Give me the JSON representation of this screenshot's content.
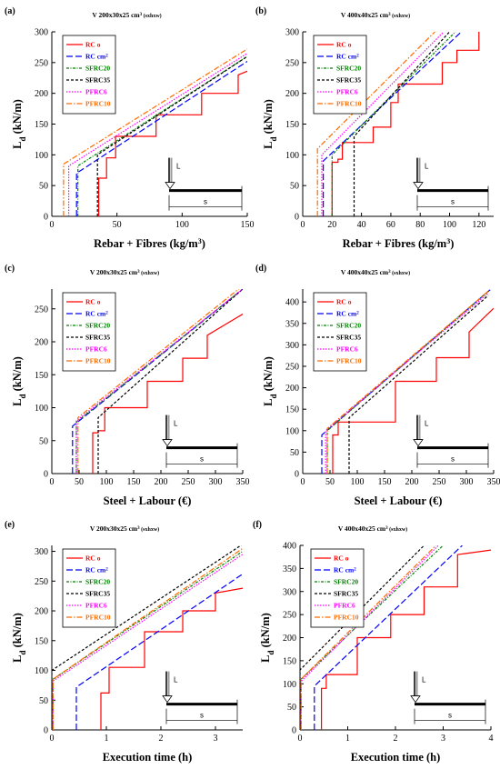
{
  "colors": {
    "RC o": "#ff0000",
    "RC cm2": "#0000ff",
    "SFRC20": "#008000",
    "SFRC35": "#000000",
    "PFRC6": "#ff00ff",
    "PFRC10": "#ff6a00"
  },
  "legend": [
    {
      "key": "RC o",
      "label": "RC o",
      "dash": ""
    },
    {
      "key": "RC cm2",
      "label": "RC cm",
      "sup": "2",
      "dash": "7,3"
    },
    {
      "key": "SFRC20",
      "label": "SFRC20",
      "dash": "3,1.5,1,1.5"
    },
    {
      "key": "SFRC35",
      "label": "SFRC35",
      "dash": "3,2"
    },
    {
      "key": "PFRC6",
      "label": "PFRC6",
      "dash": "1.5,1.5"
    },
    {
      "key": "PFRC10",
      "label": "PFRC10",
      "dash": "6,2,1.5,2"
    }
  ],
  "inset": {
    "load_label": "L",
    "span_label": "s"
  },
  "chart_data": [
    {
      "panel": "(a)",
      "title": "V 200x30x25 cm",
      "title_sup": "3",
      "title_sub": "(sxhxw)",
      "type": "line",
      "xlabel": "Rebar + Fibres  (kg/m",
      "xlabel_sup": "3",
      "xlabel_end": ")",
      "ylabel": "L",
      "ylabel_sub": "d",
      "ylabel_end": " (kN/m)",
      "xlim": [
        0,
        150
      ],
      "ylim": [
        0,
        300
      ],
      "xticks": [
        0,
        50,
        100,
        150
      ],
      "xtick_labels": [
        "0",
        "50",
        "100",
        "150"
      ],
      "yticks": [
        0,
        50,
        100,
        150,
        200,
        250,
        300
      ],
      "ytick_labels": [
        "0",
        "50",
        "100",
        "150",
        "200",
        "250",
        "300"
      ],
      "series": [
        {
          "name": "RC o",
          "x": [
            36,
            36,
            42,
            42,
            49,
            49,
            80,
            80,
            115,
            115,
            143,
            143,
            150
          ],
          "y": [
            0,
            62,
            62,
            95,
            95,
            130,
            130,
            165,
            165,
            200,
            200,
            230,
            236
          ]
        },
        {
          "name": "RC cm2",
          "x": [
            19,
            19,
            150
          ],
          "y": [
            0,
            70,
            252
          ]
        },
        {
          "name": "SFRC20",
          "x": [
            20,
            20,
            150
          ],
          "y": [
            0,
            82,
            260
          ]
        },
        {
          "name": "SFRC35",
          "x": [
            35,
            35,
            150
          ],
          "y": [
            0,
            100,
            260
          ]
        },
        {
          "name": "PFRC6",
          "x": [
            13,
            13,
            150
          ],
          "y": [
            0,
            82,
            265
          ]
        },
        {
          "name": "PFRC10",
          "x": [
            9,
            9,
            150
          ],
          "y": [
            0,
            85,
            272
          ]
        }
      ]
    },
    {
      "panel": "(b)",
      "title": "V 400x40x25 cm",
      "title_sup": "3",
      "title_sub": "(sxhxw)",
      "type": "line",
      "xlabel": "Rebar + Fibres  (kg/m",
      "xlabel_sup": "3",
      "xlabel_end": ")",
      "ylabel": "L",
      "ylabel_sub": "d",
      "ylabel_end": " (kN/m)",
      "xlim": [
        0,
        130
      ],
      "ylim": [
        0,
        300
      ],
      "xticks": [
        0,
        20,
        40,
        60,
        80,
        100,
        120
      ],
      "xtick_labels": [
        "0",
        "20",
        "40",
        "60",
        "80",
        "100",
        "120"
      ],
      "yticks": [
        0,
        50,
        100,
        150,
        200,
        250,
        300
      ],
      "ytick_labels": [
        "0",
        "50",
        "100",
        "150",
        "200",
        "250",
        "300"
      ],
      "series": [
        {
          "name": "RC o",
          "x": [
            20,
            20,
            24,
            24,
            27,
            27,
            48,
            48,
            60,
            60,
            65,
            65,
            95,
            95,
            105,
            105,
            120,
            120
          ],
          "y": [
            0,
            88,
            88,
            93,
            93,
            120,
            120,
            145,
            145,
            185,
            185,
            215,
            215,
            250,
            250,
            270,
            270,
            300
          ]
        },
        {
          "name": "RC cm2",
          "x": [
            14,
            14,
            108
          ],
          "y": [
            0,
            90,
            300
          ]
        },
        {
          "name": "SFRC20",
          "x": [
            20,
            20,
            104
          ],
          "y": [
            0,
            100,
            300
          ]
        },
        {
          "name": "SFRC35",
          "x": [
            35,
            35,
            100
          ],
          "y": [
            0,
            130,
            300
          ]
        },
        {
          "name": "PFRC6",
          "x": [
            13,
            13,
            96
          ],
          "y": [
            0,
            100,
            300
          ]
        },
        {
          "name": "PFRC10",
          "x": [
            10,
            10,
            90
          ],
          "y": [
            0,
            110,
            300
          ]
        }
      ]
    },
    {
      "panel": "(c)",
      "title": "V 200x30x25 cm",
      "title_sup": "3",
      "title_sub": "(sxhxw)",
      "type": "line",
      "xlabel": "Steel + Labour (€)",
      "xlabel_sup": "",
      "xlabel_end": "",
      "ylabel": "L",
      "ylabel_sub": "d",
      "ylabel_end": " (kN/m)",
      "xlim": [
        0,
        350
      ],
      "ylim": [
        0,
        280
      ],
      "xticks": [
        0,
        50,
        100,
        150,
        200,
        250,
        300,
        350
      ],
      "xtick_labels": [
        "0",
        "50",
        "100",
        "150",
        "200",
        "250",
        "300",
        "350"
      ],
      "yticks": [
        0,
        50,
        100,
        150,
        200,
        250
      ],
      "ytick_labels": [
        "0",
        "50",
        "100",
        "150",
        "200",
        "250"
      ],
      "series": [
        {
          "name": "RC o",
          "x": [
            75,
            75,
            85,
            85,
            97,
            97,
            175,
            175,
            240,
            240,
            285,
            285,
            350
          ],
          "y": [
            0,
            62,
            62,
            65,
            65,
            100,
            100,
            140,
            140,
            175,
            175,
            210,
            242
          ]
        },
        {
          "name": "RC cm2",
          "x": [
            38,
            38,
            350
          ],
          "y": [
            0,
            72,
            280
          ]
        },
        {
          "name": "SFRC20",
          "x": [
            45,
            45,
            350
          ],
          "y": [
            0,
            78,
            280
          ]
        },
        {
          "name": "SFRC35",
          "x": [
            85,
            85,
            350
          ],
          "y": [
            0,
            85,
            280
          ]
        },
        {
          "name": "PFRC6",
          "x": [
            45,
            45,
            350
          ],
          "y": [
            0,
            80,
            280
          ]
        },
        {
          "name": "PFRC10",
          "x": [
            48,
            48,
            350
          ],
          "y": [
            0,
            85,
            285
          ]
        }
      ]
    },
    {
      "panel": "(d)",
      "title": "V 400x40x25 cm",
      "title_sup": "3",
      "title_sub": "(sxhxw)",
      "type": "line",
      "xlabel": "Steel + Labour (€)",
      "xlabel_sup": "",
      "xlabel_end": "",
      "ylabel": "L",
      "ylabel_sub": "d",
      "ylabel_end": " (kN/m)",
      "xlim": [
        0,
        350
      ],
      "ylim": [
        0,
        430
      ],
      "xticks": [
        0,
        50,
        100,
        150,
        200,
        250,
        300,
        350
      ],
      "xtick_labels": [
        "0",
        "50",
        "100",
        "150",
        "200",
        "250",
        "300",
        "350"
      ],
      "yticks": [
        0,
        50,
        100,
        150,
        200,
        250,
        300,
        350,
        400
      ],
      "ytick_labels": [
        "0",
        "50",
        "100",
        "150",
        "200",
        "250",
        "300",
        "350",
        "400"
      ],
      "series": [
        {
          "name": "RC o",
          "x": [
            55,
            55,
            65,
            65,
            170,
            170,
            245,
            245,
            305,
            305,
            350
          ],
          "y": [
            0,
            90,
            90,
            120,
            120,
            215,
            215,
            270,
            270,
            330,
            385
          ]
        },
        {
          "name": "RC cm2",
          "x": [
            35,
            35,
            345
          ],
          "y": [
            0,
            90,
            430
          ]
        },
        {
          "name": "SFRC20",
          "x": [
            45,
            45,
            340
          ],
          "y": [
            0,
            100,
            425
          ]
        },
        {
          "name": "SFRC35",
          "x": [
            85,
            85,
            340
          ],
          "y": [
            0,
            130,
            415
          ]
        },
        {
          "name": "PFRC6",
          "x": [
            42,
            42,
            340
          ],
          "y": [
            0,
            100,
            420
          ]
        },
        {
          "name": "PFRC10",
          "x": [
            45,
            45,
            340
          ],
          "y": [
            0,
            105,
            425
          ]
        }
      ]
    },
    {
      "panel": "(e)",
      "title": "V 200x30x25 cm",
      "title_sup": "3",
      "title_sub": "(sxhxw)",
      "type": "line",
      "xlabel": "Execution time (h)",
      "xlabel_sup": "",
      "xlabel_end": "",
      "ylabel": "L",
      "ylabel_sub": "d",
      "ylabel_end": " (kN/m)",
      "xlim": [
        0,
        3.5
      ],
      "ylim": [
        0,
        310
      ],
      "xticks": [
        0,
        1,
        2,
        3
      ],
      "xtick_labels": [
        "0",
        "1",
        "2",
        "3"
      ],
      "yticks": [
        0,
        50,
        100,
        150,
        200,
        250,
        300
      ],
      "ytick_labels": [
        "0",
        "50",
        "100",
        "150",
        "200",
        "250",
        "300"
      ],
      "series": [
        {
          "name": "RC o",
          "x": [
            0.9,
            0.9,
            1.05,
            1.05,
            1.7,
            1.7,
            2.4,
            2.4,
            3.0,
            3.0,
            3.5
          ],
          "y": [
            0,
            62,
            62,
            105,
            105,
            165,
            165,
            200,
            200,
            230,
            238
          ]
        },
        {
          "name": "RC cm2",
          "x": [
            0.45,
            0.45,
            3.5
          ],
          "y": [
            0,
            72,
            262
          ]
        },
        {
          "name": "SFRC20",
          "x": [
            0.02,
            0.02,
            3.5
          ],
          "y": [
            0,
            85,
            300
          ]
        },
        {
          "name": "SFRC35",
          "x": [
            0,
            0,
            3.5
          ],
          "y": [
            0,
            100,
            312
          ]
        },
        {
          "name": "PFRC6",
          "x": [
            0.02,
            0.02,
            3.5
          ],
          "y": [
            0,
            82,
            295
          ]
        },
        {
          "name": "PFRC10",
          "x": [
            0.02,
            0.02,
            3.5
          ],
          "y": [
            0,
            85,
            305
          ]
        }
      ]
    },
    {
      "panel": "(f)",
      "title": "V 400x40x25 cm",
      "title_sup": "3",
      "title_sub": "(sxhxw)",
      "type": "line",
      "xlabel": "Execution time (h)",
      "xlabel_sup": "",
      "xlabel_end": "",
      "ylabel": "L",
      "ylabel_sub": "d",
      "ylabel_end": " (kN/m)",
      "xlim": [
        0,
        4
      ],
      "ylim": [
        0,
        400
      ],
      "xticks": [
        0,
        1,
        2,
        3,
        4
      ],
      "xtick_labels": [
        "0",
        "1",
        "2",
        "3",
        "4"
      ],
      "yticks": [
        0,
        50,
        100,
        150,
        200,
        250,
        300,
        350,
        400
      ],
      "ytick_labels": [
        "0",
        "50",
        "100",
        "150",
        "200",
        "250",
        "300",
        "350",
        "400"
      ],
      "series": [
        {
          "name": "RC o",
          "x": [
            0.45,
            0.45,
            0.55,
            0.55,
            1.2,
            1.2,
            1.9,
            1.9,
            2.6,
            2.6,
            3.3,
            3.3,
            4.0
          ],
          "y": [
            0,
            90,
            90,
            120,
            120,
            200,
            200,
            250,
            250,
            310,
            310,
            380,
            390
          ]
        },
        {
          "name": "RC cm2",
          "x": [
            0.3,
            0.3,
            3.4
          ],
          "y": [
            0,
            95,
            400
          ]
        },
        {
          "name": "SFRC20",
          "x": [
            0.02,
            0.02,
            3.0
          ],
          "y": [
            0,
            110,
            400
          ]
        },
        {
          "name": "SFRC35",
          "x": [
            0,
            0,
            2.6
          ],
          "y": [
            0,
            130,
            400
          ]
        },
        {
          "name": "PFRC6",
          "x": [
            0.02,
            0.02,
            2.9
          ],
          "y": [
            0,
            105,
            400
          ]
        },
        {
          "name": "PFRC10",
          "x": [
            0.02,
            0.02,
            2.85
          ],
          "y": [
            0,
            110,
            400
          ]
        }
      ]
    }
  ]
}
